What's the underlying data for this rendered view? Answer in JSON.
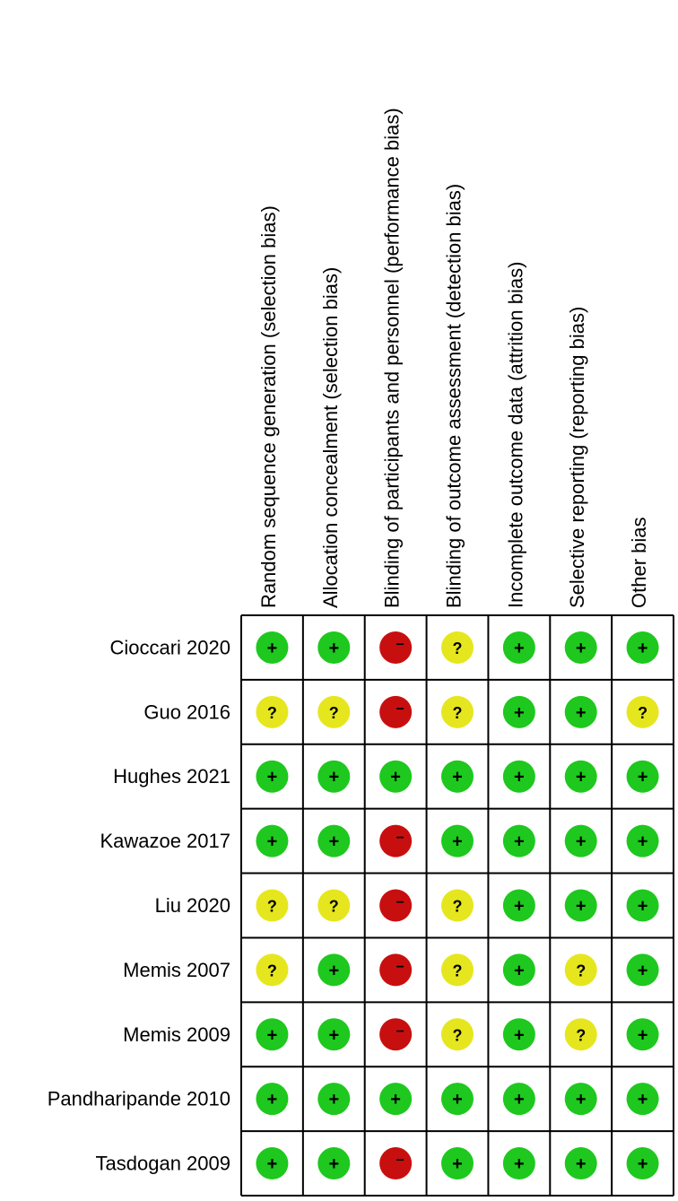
{
  "chart_data": {
    "type": "table",
    "title": "",
    "columns": [
      "Random sequence generation (selection bias)",
      "Allocation concealment (selection bias)",
      "Blinding of participants and personnel (performance bias)",
      "Blinding of outcome assessment (detection bias)",
      "Incomplete outcome data (attrition bias)",
      "Selective reporting (reporting bias)",
      "Other bias"
    ],
    "rows": [
      {
        "study": "Cioccari 2020",
        "judgements": [
          "low",
          "low",
          "high",
          "unclear",
          "low",
          "low",
          "low"
        ]
      },
      {
        "study": "Guo 2016",
        "judgements": [
          "unclear",
          "unclear",
          "high",
          "unclear",
          "low",
          "low",
          "unclear"
        ]
      },
      {
        "study": "Hughes 2021",
        "judgements": [
          "low",
          "low",
          "low",
          "low",
          "low",
          "low",
          "low"
        ]
      },
      {
        "study": "Kawazoe 2017",
        "judgements": [
          "low",
          "low",
          "high",
          "low",
          "low",
          "low",
          "low"
        ]
      },
      {
        "study": "Liu 2020",
        "judgements": [
          "unclear",
          "unclear",
          "high",
          "unclear",
          "low",
          "low",
          "low"
        ]
      },
      {
        "study": "Memis 2007",
        "judgements": [
          "unclear",
          "low",
          "high",
          "unclear",
          "low",
          "unclear",
          "low"
        ]
      },
      {
        "study": "Memis 2009",
        "judgements": [
          "low",
          "low",
          "high",
          "unclear",
          "low",
          "unclear",
          "low"
        ]
      },
      {
        "study": "Pandharipande 2010",
        "judgements": [
          "low",
          "low",
          "low",
          "low",
          "low",
          "low",
          "low"
        ]
      },
      {
        "study": "Tasdogan 2009",
        "judgements": [
          "low",
          "low",
          "high",
          "low",
          "low",
          "low",
          "low"
        ]
      }
    ],
    "legend": {
      "low": {
        "symbol": "+",
        "color": "#1ec81e"
      },
      "unclear": {
        "symbol": "?",
        "color": "#e6e61e"
      },
      "high": {
        "symbol": "−",
        "color": "#c80f0f"
      }
    },
    "grid": true
  }
}
